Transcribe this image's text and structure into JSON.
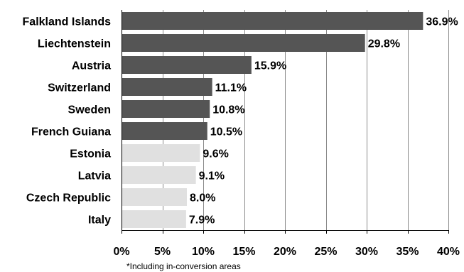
{
  "chart_data": {
    "type": "bar",
    "orientation": "horizontal",
    "categories": [
      "Falkland Islands",
      "Liechtenstein",
      "Austria",
      "Switzerland",
      "Sweden",
      "French Guiana",
      "Estonia",
      "Latvia",
      "Czech Republic",
      "Italy"
    ],
    "values": [
      36.9,
      29.8,
      15.9,
      11.1,
      10.8,
      10.5,
      9.6,
      9.1,
      8.0,
      7.9
    ],
    "value_labels": [
      "36.9%",
      "29.8%",
      "15.9%",
      "11.1%",
      "10.8%",
      "10.5%",
      "9.6%",
      "9.1%",
      "8.0%",
      "7.9%"
    ],
    "bar_colors": [
      "#555555",
      "#555555",
      "#555555",
      "#555555",
      "#555555",
      "#555555",
      "#e0e0e0",
      "#e0e0e0",
      "#e0e0e0",
      "#e0e0e0"
    ],
    "xlim": [
      0,
      40
    ],
    "xticks": [
      0,
      5,
      10,
      15,
      20,
      25,
      30,
      35,
      40
    ],
    "xtick_labels": [
      "0%",
      "5%",
      "10%",
      "15%",
      "20%",
      "25%",
      "30%",
      "35%",
      "40%"
    ],
    "grid": "vertical",
    "title": "",
    "xlabel": "",
    "ylabel": ""
  },
  "footnote": "*Including in-conversion areas"
}
